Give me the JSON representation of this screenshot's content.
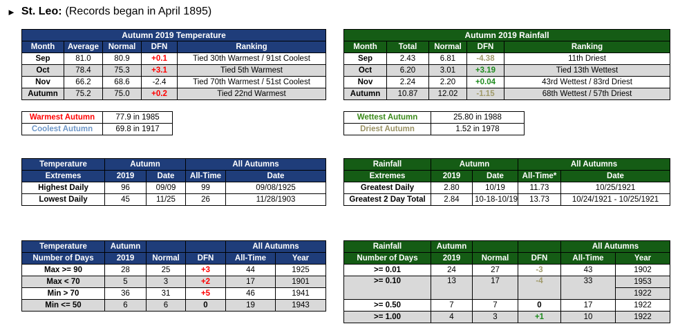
{
  "header": {
    "arrow": "►",
    "station": "St. Leo:",
    "note": "(Records began in April 1895)"
  },
  "temp_summary": {
    "title": "Autumn 2019 Temperature",
    "columns": [
      "Month",
      "Average",
      "Normal",
      "DFN",
      "Ranking"
    ],
    "rows": [
      {
        "month": "Sep",
        "average": "81.0",
        "normal": "80.9",
        "dfn": "+0.1",
        "ranking": "Tied 30th Warmest / 91st Coolest"
      },
      {
        "month": "Oct",
        "average": "78.4",
        "normal": "75.3",
        "dfn": "+3.1",
        "ranking": "Tied 5th Warmest"
      },
      {
        "month": "Nov",
        "average": "66.2",
        "normal": "68.6",
        "dfn": "-2.4",
        "ranking": "Tied 70th Warmest / 51st Coolest"
      },
      {
        "month": "Autumn",
        "average": "75.2",
        "normal": "75.0",
        "dfn": "+0.2",
        "ranking": "Tied 22nd Warmest"
      }
    ]
  },
  "rain_summary": {
    "title": "Autumn 2019 Rainfall",
    "columns": [
      "Month",
      "Total",
      "Normal",
      "DFN",
      "Ranking"
    ],
    "rows": [
      {
        "month": "Sep",
        "total": "2.43",
        "normal": "6.81",
        "dfn": "-4.38",
        "ranking": "11th Driest"
      },
      {
        "month": "Oct",
        "total": "6.20",
        "normal": "3.01",
        "dfn": "+3.19",
        "ranking": "Tied 13th Wettest"
      },
      {
        "month": "Nov",
        "total": "2.24",
        "normal": "2.20",
        "dfn": "+0.04",
        "ranking": "43rd Wettest / 83rd Driest"
      },
      {
        "month": "Autumn",
        "total": "10.87",
        "normal": "12.02",
        "dfn": "-1.15",
        "ranking": "68th Wettest / 57th Driest"
      }
    ]
  },
  "temp_records": {
    "warmest_label": "Warmest Autumn",
    "warmest_value": "77.9 in 1985",
    "coolest_label": "Coolest Autumn",
    "coolest_value": "69.8 in 1917"
  },
  "rain_records": {
    "wettest_label": "Wettest Autumn",
    "wettest_value": "25.80 in 1988",
    "driest_label": "Driest Autumn",
    "driest_value": "1.52 in 1978"
  },
  "temp_extremes": {
    "h1": "Temperature",
    "h2": "Extremes",
    "autumn": "Autumn",
    "all_autumns": "All Autumns",
    "col_2019": "2019",
    "col_date": "Date",
    "col_alltime": "All-Time",
    "col_date2": "Date",
    "rows": [
      {
        "label": "Highest Daily",
        "v2019": "96",
        "date": "09/09",
        "alltime": "99",
        "date2": "09/08/1925"
      },
      {
        "label": "Lowest Daily",
        "v2019": "45",
        "date": "11/25",
        "alltime": "26",
        "date2": "11/28/1903"
      }
    ]
  },
  "rain_extremes": {
    "h1": "Rainfall",
    "h2": "Extremes",
    "autumn": "Autumn",
    "all_autumns": "All Autumns",
    "col_2019": "2019",
    "col_date": "Date",
    "col_alltime": "All-Time*",
    "col_date2": "Date",
    "rows": [
      {
        "label": "Greatest Daily",
        "v2019": "2.80",
        "date": "10/19",
        "alltime": "11.73",
        "date2": "10/25/1921"
      },
      {
        "label": "Greatest 2 Day Total",
        "v2019": "2.84",
        "date": "10-18-10/19",
        "alltime": "13.73",
        "date2": "10/24/1921 - 10/25/1921"
      }
    ]
  },
  "temp_days": {
    "h1": "Temperature",
    "h2": "Number of Days",
    "autumn1": "Autumn",
    "autumn2": "2019",
    "col_normal": "Normal",
    "col_dfn": "DFN",
    "all_autumns": "All Autumns",
    "col_alltime": "All-Time",
    "col_year": "Year",
    "rows": [
      {
        "label": "Max >= 90",
        "v2019": "28",
        "normal": "25",
        "dfn": "+3",
        "alltime": "44",
        "year": "1925"
      },
      {
        "label": "Max < 70",
        "v2019": "5",
        "normal": "3",
        "dfn": "+2",
        "alltime": "17",
        "year": "1901"
      },
      {
        "label": "Min > 70",
        "v2019": "36",
        "normal": "31",
        "dfn": "+5",
        "alltime": "46",
        "year": "1941"
      },
      {
        "label": "Min <= 50",
        "v2019": "6",
        "normal": "6",
        "dfn": "0",
        "alltime": "19",
        "year": "1943"
      }
    ]
  },
  "rain_days": {
    "h1": "Rainfall",
    "h2": "Number of Days",
    "autumn1": "Autumn",
    "autumn2": "2019",
    "col_normal": "Normal",
    "col_dfn": "DFN",
    "all_autumns": "All Autumns",
    "col_alltime": "All-Time",
    "col_year": "Year",
    "rows": [
      {
        "label": ">= 0.01",
        "v2019": "24",
        "normal": "27",
        "dfn": "-3",
        "alltime": "43",
        "year": "1902"
      },
      {
        "label": ">= 0.10",
        "v2019": "13",
        "normal": "17",
        "dfn": "-4",
        "alltime": "33",
        "year": "1953",
        "year_extra": "1922"
      },
      {
        "label": ">= 0.50",
        "v2019": "7",
        "normal": "7",
        "dfn": "0",
        "alltime": "17",
        "year": "1922"
      },
      {
        "label": ">= 1.00",
        "v2019": "4",
        "normal": "3",
        "dfn": "+1",
        "alltime": "10",
        "year": "1922"
      }
    ]
  },
  "colors": {
    "blue_header": "#1f3d7a",
    "green_header": "#155c15",
    "gray_row": "#d9d9d9",
    "positive_temp": "#ff0000",
    "positive_rain": "#1e8b1e",
    "negative_rain": "#a09a6a"
  }
}
